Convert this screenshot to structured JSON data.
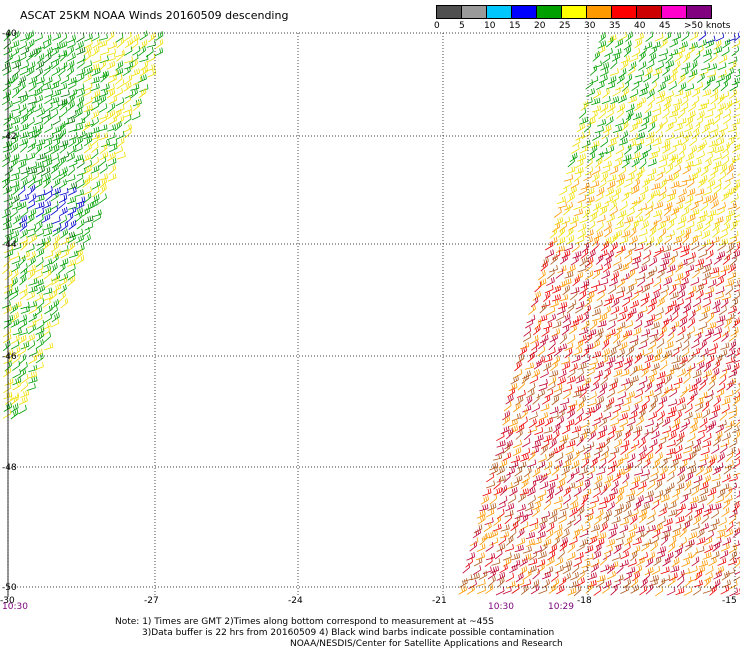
{
  "title": "ASCAT 25KM NOAA Winds 20160509 descending",
  "legend": {
    "swatches": [
      {
        "color": "#505050",
        "label": "0"
      },
      {
        "color": "#9a9a9a",
        "label": "5"
      },
      {
        "color": "#00c8ff",
        "label": "10"
      },
      {
        "color": "#0000ff",
        "label": "15"
      },
      {
        "color": "#00a000",
        "label": "20"
      },
      {
        "color": "#ffff00",
        "label": "25"
      },
      {
        "color": "#ff9900",
        "label": "30"
      },
      {
        "color": "#ff0000",
        "label": "35"
      },
      {
        "color": "#cc0000",
        "label": "40"
      },
      {
        "color": "#ff00cc",
        "label": "45"
      },
      {
        "color": "#800080",
        "label": ""
      }
    ],
    "max_label": ">50 knots"
  },
  "lat_labels": [
    "-40",
    "-42",
    "-44",
    "-46",
    "-48",
    "-50"
  ],
  "lon_labels": [
    "-30",
    "-27",
    "-24",
    "-21",
    "-18",
    "-15"
  ],
  "times": [
    "10:30",
    "10:30",
    "10:29"
  ],
  "notes": {
    "line1": "Note: 1) Times are GMT 2)Times along bottom correspond to measurement at ~45S",
    "line2": "3)Data buffer is 22 hrs from 20160509 4) Black wind barbs indicate possible contamination",
    "line3": "NOAA/NESDIS/Center for Satellite Applications and Research"
  },
  "barb_colors": {
    "green": "#00a000",
    "dark_green": "#007000",
    "yellow": "#f0e000",
    "orange": "#ff9900",
    "brown": "#b05a20",
    "red": "#ee0000",
    "crimson": "#c00030",
    "blue": "#0000cc"
  }
}
